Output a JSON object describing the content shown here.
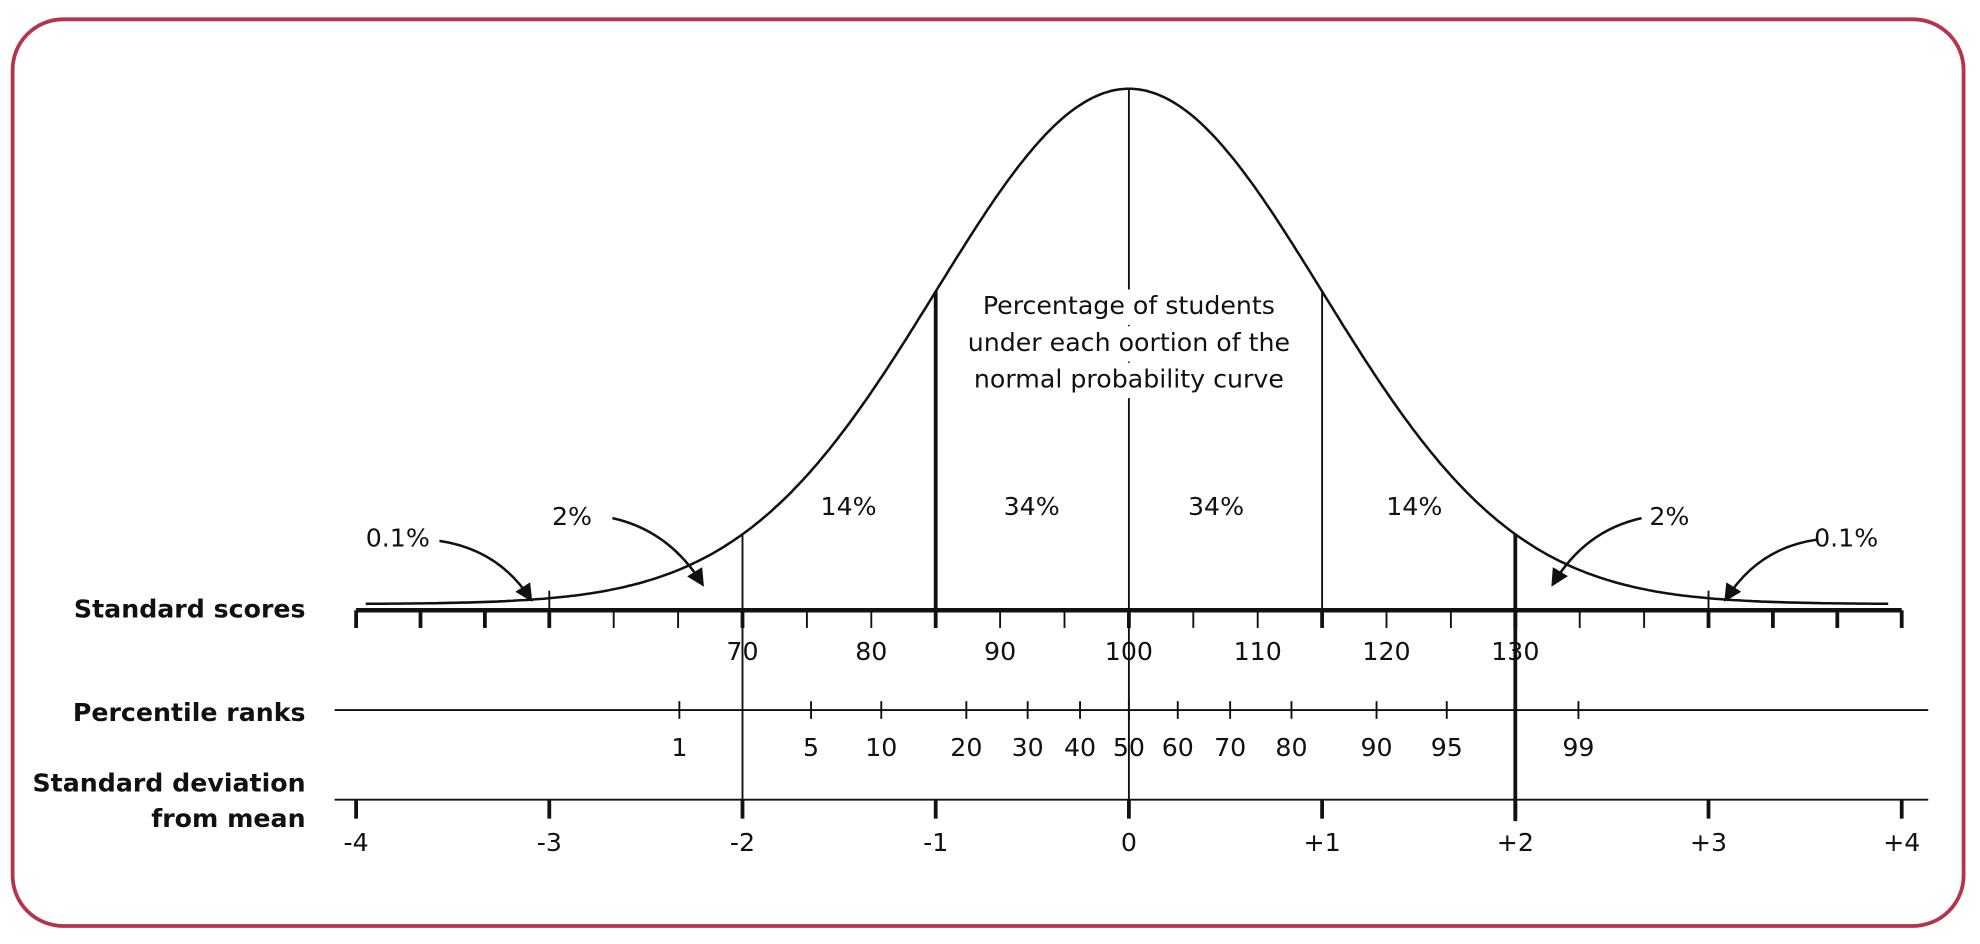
{
  "labels": {
    "standard_scores": "Standard scores",
    "percentile_ranks": "Percentile ranks",
    "sd_line1": "Standard deviation",
    "sd_line2": "from mean"
  },
  "caption": [
    "Percentage of students",
    "under each oortion of the",
    "normal probability curve"
  ],
  "areas": [
    "0.1%",
    "2%",
    "14%",
    "34%",
    "34%",
    "14%",
    "2%",
    "0.1%"
  ],
  "standard_scores": [
    "70",
    "80",
    "90",
    "100",
    "110",
    "120",
    "130"
  ],
  "percentile_ranks": [
    "1",
    "5",
    "10",
    "20",
    "30",
    "40",
    "50",
    "60",
    "70",
    "80",
    "90",
    "95",
    "99"
  ],
  "sd_from_mean": [
    "-4",
    "-3",
    "-2",
    "-1",
    "0",
    "+1",
    "+2",
    "+3",
    "+4"
  ]
}
